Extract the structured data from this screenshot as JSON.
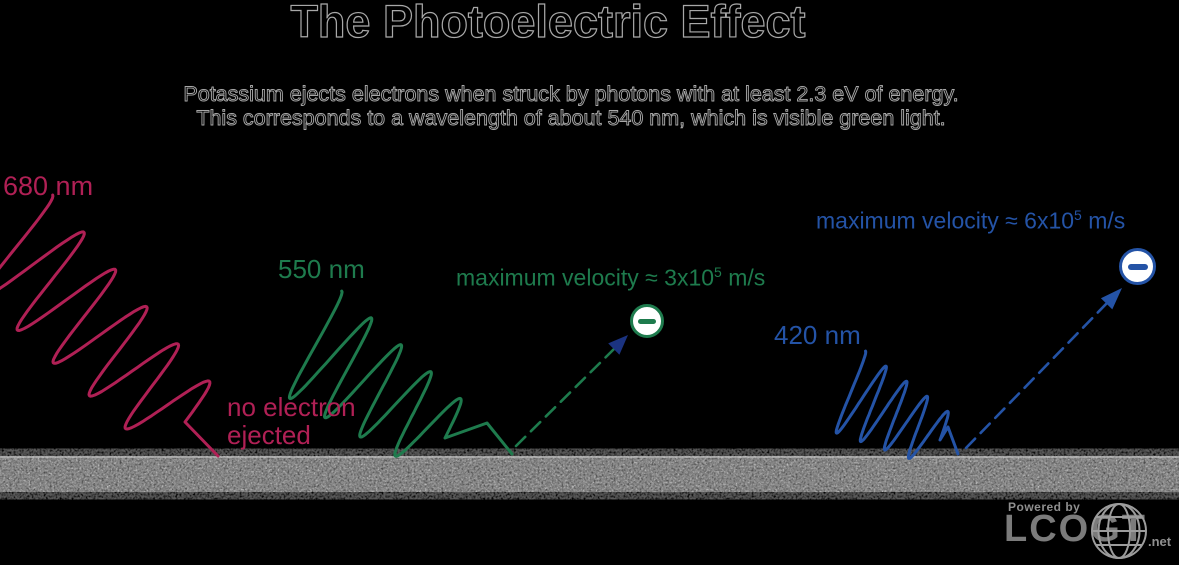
{
  "title": "The Photoelectric Effect",
  "subtitle": {
    "line1": "Potassium ejects electrons when struck by photons with at least 2.3 eV of energy.",
    "line2": "This corresponds to a wavelength of about 540 nm, which is visible green light."
  },
  "photons": [
    {
      "label": "680 nm",
      "result_line1": "no electron",
      "result_line2": "ejected"
    },
    {
      "label": "550 nm",
      "velocity_prefix": "maximum velocity ≈ 3x10",
      "velocity_exponent": "5",
      "velocity_suffix": " m/s"
    },
    {
      "label": "420 nm",
      "velocity_prefix": "maximum velocity ≈ 6x10",
      "velocity_exponent": "5",
      "velocity_suffix": " m/s"
    }
  ],
  "icons": {
    "electron_charge": "minus",
    "logo_globe": "globe"
  },
  "logo": {
    "powered_by": "Powered by",
    "name": "LCOGT",
    "suffix": ".net"
  },
  "colors": {
    "background": "#000000",
    "outline_text": "#a8a8a8",
    "red": "#b02055",
    "green": "#1e7b4d",
    "blue": "#2453a6",
    "arrowhead_navy": "#1b3380",
    "surface_gray": "#a9a9a9",
    "logo_gray": "#8f8f8f"
  }
}
